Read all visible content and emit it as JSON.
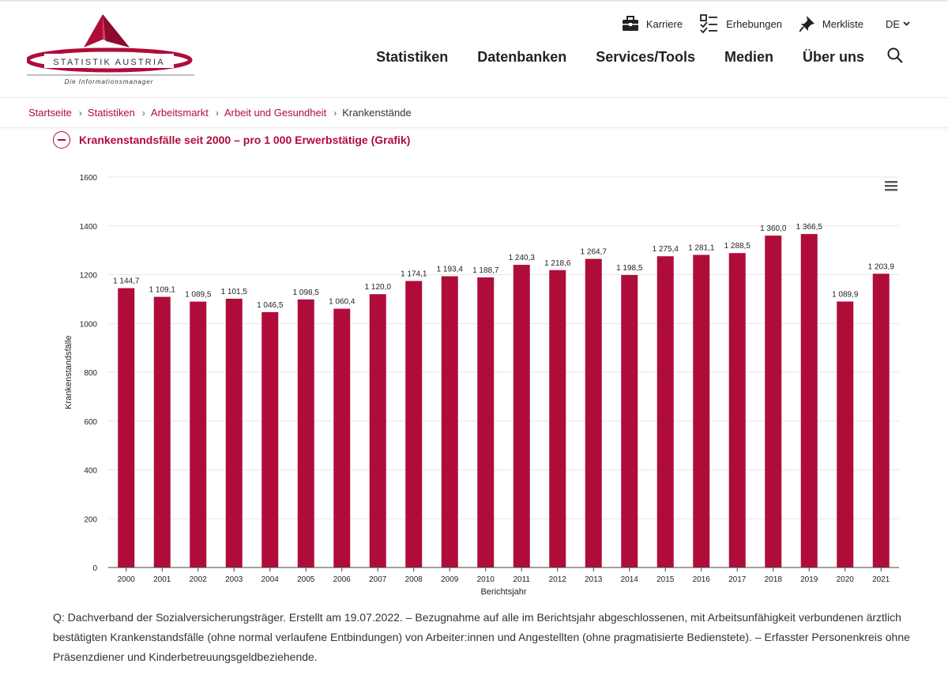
{
  "brand": {
    "logo_text": "STATISTIK AUSTRIA",
    "tagline": "Die Informationsmanager",
    "color": "#b00c3a"
  },
  "utility_nav": {
    "items": [
      {
        "label": "Karriere",
        "icon": "briefcase-icon"
      },
      {
        "label": "Erhebungen",
        "icon": "checklist-icon"
      },
      {
        "label": "Merkliste",
        "icon": "pushpin-icon"
      }
    ],
    "language": "DE"
  },
  "main_nav": {
    "items": [
      "Statistiken",
      "Datenbanken",
      "Services/Tools",
      "Medien",
      "Über uns"
    ],
    "search_icon": "search-icon"
  },
  "breadcrumb": {
    "items": [
      "Startseite",
      "Statistiken",
      "Arbeitsmarkt",
      "Arbeit und Gesundheit"
    ],
    "current": "Krankenstände"
  },
  "section": {
    "title": "Krankenstandsfälle seit 2000 – pro 1 000 Erwerbstätige (Grafik)",
    "toggle_icon": "minus-circle-icon"
  },
  "chart_data": {
    "type": "bar",
    "categories": [
      "2000",
      "2001",
      "2002",
      "2003",
      "2004",
      "2005",
      "2006",
      "2007",
      "2008",
      "2009",
      "2010",
      "2011",
      "2012",
      "2013",
      "2014",
      "2015",
      "2016",
      "2017",
      "2018",
      "2019",
      "2020",
      "2021"
    ],
    "values": [
      1144.7,
      1109.1,
      1089.5,
      1101.5,
      1046.5,
      1098.5,
      1060.4,
      1120.0,
      1174.1,
      1193.4,
      1188.7,
      1240.3,
      1218.6,
      1264.7,
      1198.5,
      1275.4,
      1281.1,
      1288.5,
      1360.0,
      1366.5,
      1089.9,
      1203.9
    ],
    "data_labels": [
      "1 144,7",
      "1 109,1",
      "1 089,5",
      "1 101,5",
      "1 046,5",
      "1 098,5",
      "1 060,4",
      "1 120,0",
      "1 174,1",
      "1 193,4",
      "1 188,7",
      "1 240,3",
      "1 218,6",
      "1 264,7",
      "1 198,5",
      "1 275,4",
      "1 281,1",
      "1 288,5",
      "1 360,0",
      "1 366,5",
      "1 089,9",
      "1 203,9"
    ],
    "xlabel": "Berichtsjahr",
    "ylabel": "Krankenstandsfälle",
    "ylim": [
      0,
      1600
    ],
    "yticks": [
      0,
      200,
      400,
      600,
      800,
      1000,
      1200,
      1400,
      1600
    ],
    "grid": true,
    "bar_color": "#b00c3a",
    "menu_icon": "hamburger-menu-icon"
  },
  "source_note": "Q: Dachverband der Sozialversicherungsträger. Erstellt am 19.07.2022. – Bezugnahme auf alle im Berichtsjahr abgeschlossenen, mit Arbeitsunfähigkeit verbundenen ärztlich bestätigten Krankenstandsfälle (ohne normal verlaufene Entbindungen) von Arbeiter:innen und Angestellten (ohne pragmatisierte Bedienstete). – Erfasster Personenkreis ohne Präsenzdiener und Kinderbetreuungsgeldbeziehende."
}
